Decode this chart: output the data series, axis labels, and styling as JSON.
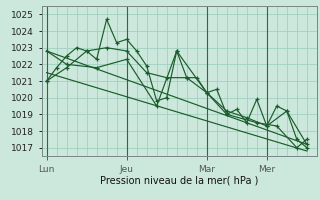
{
  "bg_color": "#cce8dc",
  "grid_color": "#99ccbb",
  "line_color": "#1a5c2a",
  "marker_color": "#1a5c2a",
  "xlabel": "Pression niveau de la mer( hPa )",
  "ylim": [
    1016.5,
    1025.5
  ],
  "yticks": [
    1017,
    1018,
    1019,
    1020,
    1021,
    1022,
    1023,
    1024,
    1025
  ],
  "xtick_labels": [
    "Lun",
    "Jeu",
    "Mar",
    "Mer"
  ],
  "xtick_positions": [
    0,
    8,
    16,
    22
  ],
  "vline_positions": [
    0,
    8,
    16,
    22
  ],
  "xlim": [
    -0.5,
    27
  ],
  "series1_x": [
    0,
    1,
    2,
    3,
    4,
    5,
    6,
    7,
    8,
    9,
    10,
    11,
    12,
    13,
    14,
    15,
    16,
    17,
    18,
    19,
    20,
    21,
    22,
    23,
    24,
    25,
    26
  ],
  "series1_y": [
    1021.0,
    1021.8,
    1022.5,
    1023.0,
    1022.8,
    1022.3,
    1024.7,
    1023.3,
    1023.5,
    1022.8,
    1021.9,
    1019.8,
    1020.0,
    1022.8,
    1021.2,
    1021.2,
    1020.3,
    1020.5,
    1019.0,
    1019.3,
    1018.5,
    1019.9,
    1018.3,
    1019.5,
    1019.2,
    1017.5,
    1017.0
  ],
  "series2_x": [
    0,
    2,
    5,
    8,
    11,
    13,
    16,
    18,
    21,
    23,
    25,
    26
  ],
  "series2_y": [
    1022.8,
    1022.0,
    1021.8,
    1022.3,
    1019.5,
    1022.8,
    1020.3,
    1019.0,
    1018.5,
    1018.3,
    1017.0,
    1017.5
  ],
  "trend1_x": [
    0,
    26
  ],
  "trend1_y": [
    1022.8,
    1017.2
  ],
  "trend2_x": [
    0,
    26
  ],
  "trend2_y": [
    1021.5,
    1016.8
  ],
  "series3_x": [
    0,
    2,
    4,
    6,
    8,
    10,
    12,
    14,
    16,
    18,
    20,
    22,
    24,
    26
  ],
  "series3_y": [
    1021.0,
    1021.8,
    1022.8,
    1023.0,
    1022.8,
    1021.5,
    1021.2,
    1021.2,
    1020.3,
    1019.2,
    1018.8,
    1018.3,
    1019.2,
    1017.2
  ]
}
